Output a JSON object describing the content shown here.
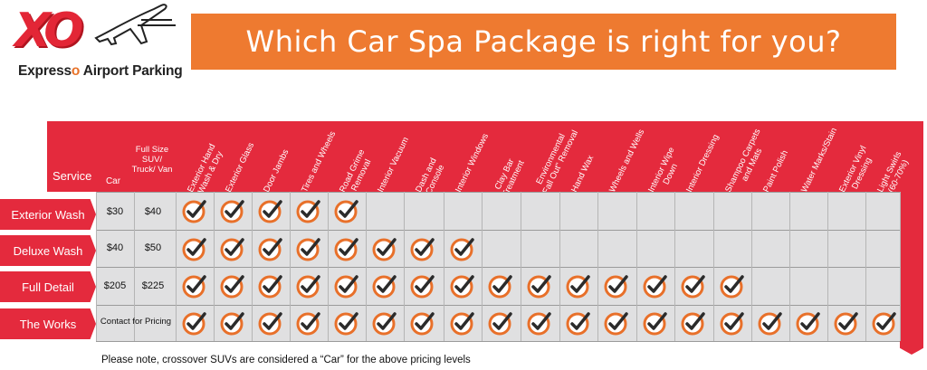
{
  "logo": {
    "mark": "XO",
    "tagline_prefix": "Express",
    "tagline_o": "o",
    "tagline_suffix": " Airport Parking"
  },
  "title": "Which Car Spa Package is right for you?",
  "header": {
    "service": "Service",
    "car": "Car",
    "suv": "Full Size SUV/ Truck/ Van",
    "services": [
      "Exterior Hand\nWash & Dry",
      "Exterior Glass",
      "Door Jambs",
      "Tires and Wheels",
      "Road Grime\nRemoval",
      "Interior Vacuum",
      "Dash and\nConsole",
      "Interior Windows",
      "Clay Bar\nTreatment",
      "Environmental\n\"Fall Out\" Removal",
      "Hand Wax",
      "Wheels and Wells",
      "Interior Wipe\nDown",
      "Interior Dressing",
      "Shampoo Carpets\nand Mats",
      "Paint Polish",
      "Water Marks/Stain",
      "Exterior Vinyl\nDressing",
      "Light Swirls\n(60-70%)"
    ]
  },
  "packages": [
    {
      "name": "Exterior Wash",
      "car": "$30",
      "suv": "$40",
      "included": 5
    },
    {
      "name": "Deluxe Wash",
      "car": "$40",
      "suv": "$50",
      "included": 8
    },
    {
      "name": "Full Detail",
      "car": "$205",
      "suv": "$225",
      "included": 15
    },
    {
      "name": "The Works",
      "pricing": "Contact for Pricing",
      "included": 19
    }
  ],
  "note": "Please note, crossover SUVs are considered a “Car” for the above pricing levels",
  "colors": {
    "red": "#e42a3d",
    "orange": "#ee7a30",
    "check_ring": "#e8702a",
    "check_mark": "#2b2b2b",
    "grid": "#e0e0e1"
  }
}
